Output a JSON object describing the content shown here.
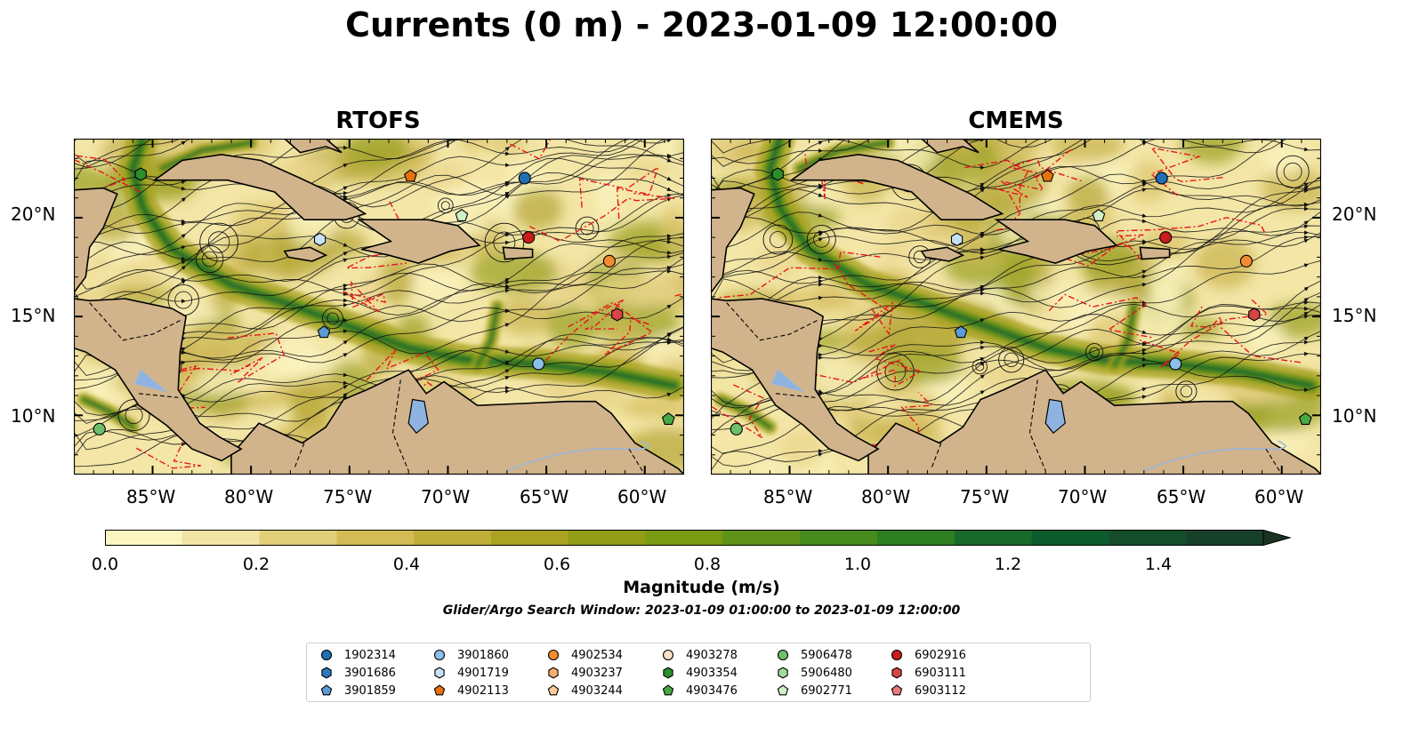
{
  "title": "Currents (0 m) - 2023-01-09 12:00:00",
  "panels": [
    {
      "title": "RTOFS"
    },
    {
      "title": "CMEMS"
    }
  ],
  "axes": {
    "lon_labels": [
      "85°W",
      "80°W",
      "75°W",
      "70°W",
      "65°W",
      "60°W"
    ],
    "lat_labels": [
      "20°N",
      "15°N",
      "10°N"
    ],
    "extent": {
      "lon": [
        -89,
        -58
      ],
      "lat": [
        7,
        24
      ]
    }
  },
  "colorbar": {
    "label": "Magnitude (m/s)",
    "ticks": [
      "0.0",
      "0.2",
      "0.4",
      "0.6",
      "0.8",
      "1.0",
      "1.2",
      "1.4"
    ],
    "range": [
      0,
      1.5
    ],
    "colors": [
      "#fbf5c2",
      "#f1e3a3",
      "#e2cf79",
      "#d3bc55",
      "#bfae38",
      "#a9a223",
      "#919d15",
      "#7a9a12",
      "#5f9218",
      "#478a1e",
      "#2e7e22",
      "#176a2a",
      "#0d5a2c",
      "#134d2a",
      "#17402a",
      "#1a3322"
    ]
  },
  "search_window": "Glider/Argo Search Window: 2023-01-09 01:00:00 to 2023-01-09 12:00:00",
  "legend": {
    "items": [
      {
        "label": "1902314",
        "color": "#1f6fb4",
        "marker": "circle"
      },
      {
        "label": "3901686",
        "color": "#2b79c0",
        "marker": "hexagon"
      },
      {
        "label": "3901859",
        "color": "#5c9bd6",
        "marker": "pentagon"
      },
      {
        "label": "3901860",
        "color": "#8cc0ea",
        "marker": "circle"
      },
      {
        "label": "4901719",
        "color": "#c6e1f7",
        "marker": "hexagon"
      },
      {
        "label": "4902113",
        "color": "#e5720f",
        "marker": "pentagon"
      },
      {
        "label": "4902534",
        "color": "#f38c30",
        "marker": "circle"
      },
      {
        "label": "4903237",
        "color": "#f8ad6e",
        "marker": "hexagon"
      },
      {
        "label": "4903244",
        "color": "#fbcb9b",
        "marker": "pentagon"
      },
      {
        "label": "4903278",
        "color": "#fde0c6",
        "marker": "circle"
      },
      {
        "label": "4903354",
        "color": "#2c8f2c",
        "marker": "hexagon"
      },
      {
        "label": "4903476",
        "color": "#48a848",
        "marker": "pentagon"
      },
      {
        "label": "5906478",
        "color": "#6cc06c",
        "marker": "circle"
      },
      {
        "label": "5906480",
        "color": "#a1dc9a",
        "marker": "hexagon"
      },
      {
        "label": "6902771",
        "color": "#d1f0c9",
        "marker": "pentagon"
      },
      {
        "label": "6902916",
        "color": "#c91c1c",
        "marker": "circle"
      },
      {
        "label": "6903111",
        "color": "#d84545",
        "marker": "hexagon"
      },
      {
        "label": "6903112",
        "color": "#ee7a7a",
        "marker": "pentagon"
      }
    ]
  },
  "platforms": {
    "RTOFS": [
      {
        "id": "4903354",
        "lon": -85.6,
        "lat": 22.2
      },
      {
        "id": "4902113",
        "lon": -71.9,
        "lat": 22.1
      },
      {
        "id": "1902314",
        "lon": -66.1,
        "lat": 22.0
      },
      {
        "id": "6902771",
        "lon": -69.3,
        "lat": 20.1
      },
      {
        "id": "4901719",
        "lon": -76.5,
        "lat": 18.9
      },
      {
        "id": "6902916",
        "lon": -65.9,
        "lat": 19.0
      },
      {
        "id": "4902534",
        "lon": -61.8,
        "lat": 17.8
      },
      {
        "id": "6903111",
        "lon": -61.4,
        "lat": 15.1
      },
      {
        "id": "3901859",
        "lon": -76.3,
        "lat": 14.2
      },
      {
        "id": "3901860",
        "lon": -65.4,
        "lat": 12.6
      },
      {
        "id": "5906478",
        "lon": -87.7,
        "lat": 9.3
      },
      {
        "id": "4903476",
        "lon": -58.8,
        "lat": 9.8
      }
    ],
    "CMEMS": [
      {
        "id": "4903354",
        "lon": -85.6,
        "lat": 22.2
      },
      {
        "id": "4902113",
        "lon": -71.9,
        "lat": 22.1
      },
      {
        "id": "1902314",
        "lon": -66.1,
        "lat": 22.0
      },
      {
        "id": "6902771",
        "lon": -69.3,
        "lat": 20.1
      },
      {
        "id": "4901719",
        "lon": -76.5,
        "lat": 18.9
      },
      {
        "id": "6902916",
        "lon": -65.9,
        "lat": 19.0
      },
      {
        "id": "4902534",
        "lon": -61.8,
        "lat": 17.8
      },
      {
        "id": "6903111",
        "lon": -61.4,
        "lat": 15.1
      },
      {
        "id": "3901859",
        "lon": -76.3,
        "lat": 14.2
      },
      {
        "id": "3901860",
        "lon": -65.4,
        "lat": 12.6
      },
      {
        "id": "5906478",
        "lon": -87.7,
        "lat": 9.3
      },
      {
        "id": "4903476",
        "lon": -58.8,
        "lat": 9.8
      }
    ]
  }
}
